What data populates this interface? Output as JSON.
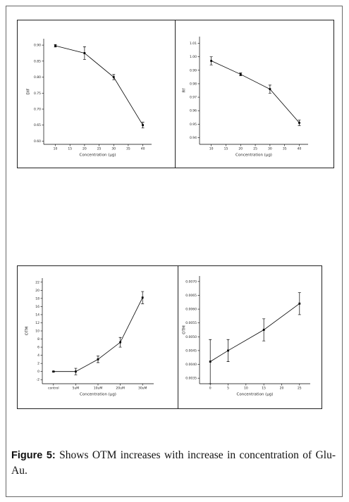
{
  "chart_data": [
    {
      "type": "line",
      "y_label": "DIF",
      "x_label": "Concentration (µg)",
      "color": "#000000",
      "x": [
        10,
        20,
        30,
        40
      ],
      "values": [
        0.898,
        0.875,
        0.8,
        0.65
      ],
      "errors": [
        0.004,
        0.02,
        0.008,
        0.009
      ],
      "xlim": [
        6,
        43
      ],
      "xticks": [
        10,
        15,
        20,
        25,
        30,
        35,
        40
      ],
      "ylim": [
        0.59,
        0.92
      ],
      "yticks": [
        {
          "value": 0.6,
          "label": "0.60"
        },
        0.65,
        {
          "value": 0.7,
          "label": "0.70"
        },
        0.75,
        {
          "value": 0.8,
          "label": "0.80"
        },
        0.85,
        {
          "value": 0.9,
          "label": "0.90"
        }
      ]
    },
    {
      "type": "line",
      "y_label": "Rf",
      "x_label": "Concentration (µg)",
      "color": "#000000",
      "x": [
        10,
        20,
        30,
        40
      ],
      "values": [
        0.997,
        0.987,
        0.976,
        0.951
      ],
      "errors": [
        0.003,
        0.001,
        0.003,
        0.002
      ],
      "xlim": [
        6,
        43
      ],
      "xticks": [
        10,
        15,
        20,
        25,
        30,
        35,
        40
      ],
      "ylim": [
        0.935,
        1.015
      ],
      "yticks": [
        0.94,
        0.95,
        0.96,
        0.97,
        0.98,
        0.99,
        {
          "value": 1.0,
          "label": "1.00"
        },
        1.01
      ]
    },
    {
      "type": "line",
      "y_label": "OTM",
      "x_label": "Concentration (µg)",
      "color": "#000000",
      "categories": [
        "control",
        "5uM",
        "10uM",
        "20uM",
        "30uM"
      ],
      "values": [
        0,
        0,
        3,
        7.2,
        18.2
      ],
      "errors": [
        0.1,
        0.8,
        0.8,
        1.2,
        1.5
      ],
      "ylim": [
        -3,
        23
      ],
      "yticks": [
        -2,
        0,
        2,
        4,
        6,
        8,
        10,
        12,
        14,
        16,
        18,
        20,
        22
      ]
    },
    {
      "type": "line",
      "y_label": "OTM",
      "x_label": "Concentration (µg)",
      "color": "#000000",
      "x": [
        0,
        5,
        15,
        25
      ],
      "values": [
        0.0041,
        0.0045,
        0.00525,
        0.0062
      ],
      "errors": [
        0.0008,
        0.0004,
        0.0004,
        0.0004
      ],
      "xlim": [
        -3,
        28
      ],
      "xticks": [
        0,
        5,
        10,
        15,
        20,
        25
      ],
      "ylim": [
        0.0033,
        0.0072
      ],
      "yticks": [
        0.0035,
        {
          "value": 0.004,
          "label": "0.0040"
        },
        0.0045,
        {
          "value": 0.005,
          "label": "0.0050"
        },
        0.0055,
        {
          "value": 0.006,
          "label": "0.0060"
        },
        0.0065,
        {
          "value": 0.007,
          "label": "0.0070"
        }
      ]
    }
  ],
  "caption": {
    "label": "Figure 5:",
    "text": "Shows OTM increases with increase in concentration of Glu-Au."
  }
}
